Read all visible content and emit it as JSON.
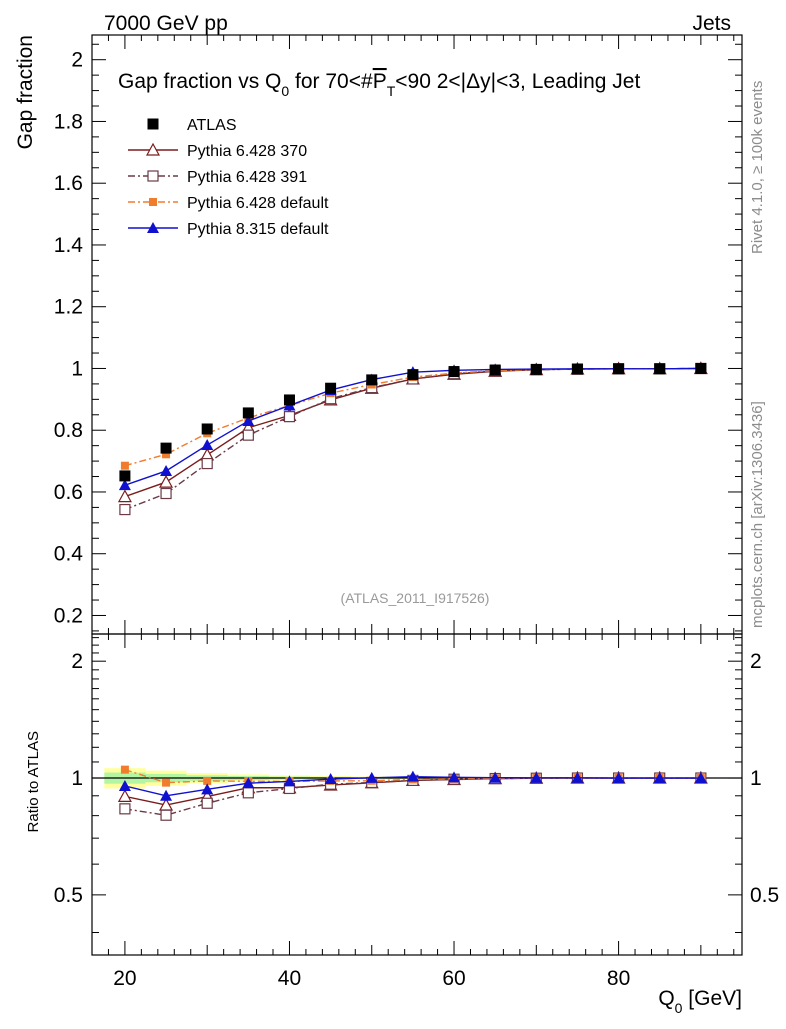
{
  "header": {
    "left": "7000 GeV pp",
    "right": "Jets"
  },
  "side_text": {
    "rivet": "Rivet 4.1.0, ≥ 100k events",
    "mcplots": "mcplots.cern.ch [arXiv:1306.3436]"
  },
  "chart_data": [
    {
      "type": "line",
      "title_parts": {
        "a": "Gap fraction vs Q",
        "sub": "0",
        "b": " for 70<#",
        "p": "P",
        "t": "T",
        "c": "<90  2<|Δy|<3, Leading Jet"
      },
      "ylabel": "Gap fraction",
      "xlim": [
        16,
        95
      ],
      "ylim": [
        0.14,
        2.08
      ],
      "yticks": [
        "0.2",
        "0.4",
        "0.6",
        "0.8",
        "1",
        "1.2",
        "1.4",
        "1.6",
        "1.8",
        "2"
      ],
      "watermark": "(ATLAS_2011_I917526)",
      "x": [
        20,
        25,
        30,
        35,
        40,
        45,
        50,
        55,
        60,
        65,
        70,
        75,
        80,
        85,
        90
      ],
      "series": [
        {
          "name": "ATLAS",
          "color": "#000000",
          "marker": "square-filled",
          "values": [
            0.652,
            0.742,
            0.804,
            0.856,
            0.898,
            0.936,
            0.963,
            0.98,
            0.99,
            0.995,
            0.997,
            0.998,
            0.999,
            0.999,
            1.0
          ]
        },
        {
          "name": "Pythia 6.428 370",
          "color": "#7b1c1c",
          "marker": "triangle-open",
          "dash": "",
          "values": [
            0.585,
            0.632,
            0.72,
            0.808,
            0.848,
            0.898,
            0.936,
            0.966,
            0.981,
            0.991,
            0.996,
            0.998,
            0.999,
            0.999,
            1.0
          ]
        },
        {
          "name": "Pythia 6.428 391",
          "color": "#6b3a46",
          "marker": "square-open",
          "dash": "7 3 2 3",
          "values": [
            0.543,
            0.595,
            0.692,
            0.784,
            0.844,
            0.902,
            0.938,
            0.966,
            0.983,
            0.992,
            0.996,
            0.998,
            0.999,
            0.999,
            1.0
          ]
        },
        {
          "name": "Pythia 6.428 default",
          "color": "#f07c2e",
          "marker": "square-filled-small",
          "dash": "7 3 2 3",
          "values": [
            0.685,
            0.722,
            0.79,
            0.84,
            0.88,
            0.92,
            0.948,
            0.972,
            0.985,
            0.993,
            0.997,
            0.998,
            0.999,
            0.999,
            1.0
          ]
        },
        {
          "name": "Pythia 8.315 default",
          "color": "#1010d0",
          "marker": "triangle-filled",
          "dash": "",
          "values": [
            0.622,
            0.668,
            0.752,
            0.83,
            0.88,
            0.93,
            0.964,
            0.988,
            0.994,
            0.997,
            0.998,
            0.999,
            0.999,
            0.999,
            1.0
          ]
        }
      ]
    },
    {
      "type": "line",
      "ylabel": "Ratio to ATLAS",
      "xlabel_parts": {
        "a": "Q",
        "sub": "0",
        "b": " [GeV]"
      },
      "xlim": [
        16,
        95
      ],
      "ylim": [
        0.35,
        2.35
      ],
      "yticks": [
        "0.5",
        "1",
        "2"
      ],
      "xticks": [
        "20",
        "40",
        "60",
        "80"
      ],
      "band": {
        "x": [
          17.5,
          22.5,
          27.5,
          32.5,
          37.5,
          42.5,
          47.5,
          52.5,
          57.5,
          62.5,
          67.5,
          72.5,
          77.5,
          82.5,
          87.5,
          92.5
        ],
        "halfwidth": [
          0.06,
          0.045,
          0.03,
          0.022,
          0.016,
          0.012,
          0.009,
          0.006,
          0.004,
          0.003,
          0.002,
          0.002,
          0.0015,
          0.0015,
          0.001
        ]
      },
      "series": [
        {
          "name": "Pythia 6.428 370",
          "values": [
            0.897,
            0.852,
            0.896,
            0.944,
            0.944,
            0.959,
            0.972,
            0.986,
            0.991,
            0.996,
            0.999,
            1.0,
            1.0,
            1.0,
            1.0
          ]
        },
        {
          "name": "Pythia 6.428 391",
          "values": [
            0.833,
            0.802,
            0.861,
            0.916,
            0.94,
            0.964,
            0.974,
            0.986,
            0.993,
            0.997,
            0.999,
            1.0,
            1.0,
            1.0,
            1.0
          ]
        },
        {
          "name": "Pythia 6.428 default",
          "values": [
            1.051,
            0.973,
            0.983,
            0.981,
            0.98,
            0.983,
            0.984,
            0.992,
            0.995,
            0.998,
            1.0,
            1.0,
            1.0,
            1.0,
            1.0
          ]
        },
        {
          "name": "Pythia 8.315 default",
          "values": [
            0.954,
            0.9,
            0.935,
            0.97,
            0.98,
            0.994,
            1.001,
            1.008,
            1.004,
            1.002,
            1.001,
            1.001,
            1.0,
            1.0,
            1.0
          ]
        }
      ]
    }
  ]
}
